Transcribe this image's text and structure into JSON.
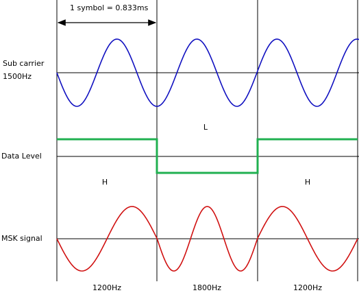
{
  "symbol_annotation": "1 symbol = 0.833ms",
  "rows": {
    "sub_carrier": {
      "label": "Sub carrier",
      "frequency": "1500Hz"
    },
    "data_level": {
      "label": "Data Level",
      "symbols": [
        "H",
        "L",
        "H"
      ]
    },
    "msk_signal": {
      "label": "MSK signal"
    }
  },
  "frequencies": [
    "1200Hz",
    "1800Hz",
    "1200Hz"
  ]
}
